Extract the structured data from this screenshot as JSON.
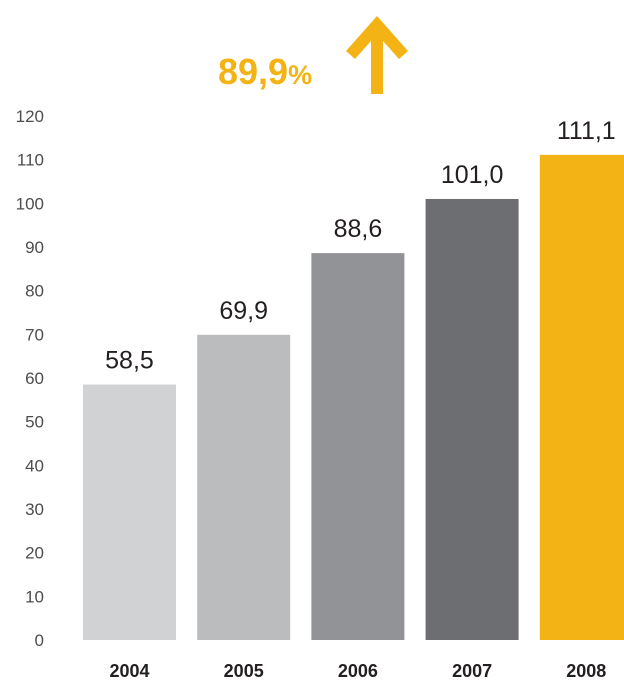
{
  "growth": {
    "value": "89,9",
    "unit": "%",
    "icon": "arrow-up-icon",
    "color": "#f4b315"
  },
  "chart_data": {
    "type": "bar",
    "categories": [
      "2004",
      "2005",
      "2006",
      "2007",
      "2008"
    ],
    "values": [
      58.5,
      69.9,
      88.6,
      101.0,
      111.1
    ],
    "value_labels": [
      "58,5",
      "69,9",
      "88,6",
      "101,0",
      "111,1"
    ],
    "bar_colors": [
      "#d1d2d4",
      "#bbbcbe",
      "#929396",
      "#6d6e71",
      "#f4b315"
    ],
    "yticks": [
      "0",
      "10",
      "20",
      "30",
      "40",
      "50",
      "60",
      "70",
      "80",
      "90",
      "100",
      "110",
      "120"
    ],
    "ylim": [
      0,
      120
    ],
    "title": "",
    "xlabel": "",
    "ylabel": "",
    "grid": false,
    "legend": "none"
  }
}
